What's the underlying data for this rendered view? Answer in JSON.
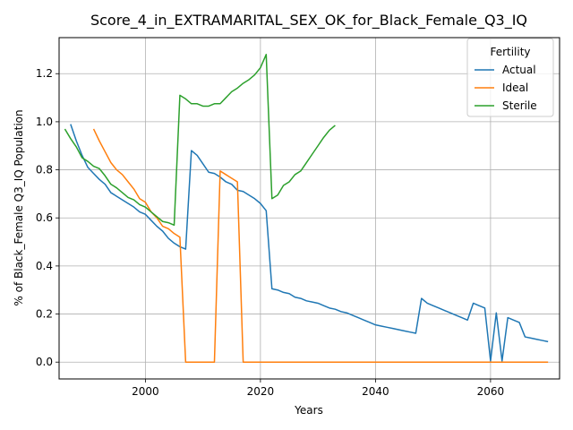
{
  "chart_data": {
    "type": "line",
    "title": "Score_4_in_EXTRAMARITAL_SEX_OK_for_Black_Female_Q3_IQ",
    "xlabel": "Years",
    "ylabel": "% of Black_Female Q3_IQ Population",
    "xlim": [
      1985,
      2072
    ],
    "ylim": [
      -0.07,
      1.35
    ],
    "xticks": [
      2000,
      2020,
      2040,
      2060
    ],
    "yticks": [
      0.0,
      0.2,
      0.4,
      0.6,
      0.8,
      1.0,
      1.2
    ],
    "grid": true,
    "legend": {
      "title": "Fertility",
      "location": "top-right"
    },
    "series": [
      {
        "name": "Actual",
        "color": "#1f77b4",
        "x": [
          1987,
          1988,
          1989,
          1990,
          1991,
          1992,
          1993,
          1994,
          1995,
          1996,
          1997,
          1998,
          1999,
          2000,
          2001,
          2002,
          2003,
          2004,
          2005,
          2006,
          2007,
          2008,
          2009,
          2010,
          2011,
          2012,
          2013,
          2014,
          2015,
          2016,
          2017,
          2018,
          2019,
          2020,
          2021,
          2022,
          2023,
          2024,
          2025,
          2026,
          2027,
          2028,
          2029,
          2030,
          2031,
          2032,
          2033,
          2034,
          2035,
          2036,
          2037,
          2038,
          2039,
          2040,
          2041,
          2042,
          2043,
          2044,
          2045,
          2046,
          2047,
          2048,
          2049,
          2050,
          2051,
          2052,
          2053,
          2054,
          2055,
          2056,
          2057,
          2058,
          2059,
          2060,
          2061,
          2062,
          2063,
          2064,
          2065,
          2066,
          2067,
          2068,
          2069,
          2070
        ],
        "values": [
          0.99,
          0.92,
          0.86,
          0.81,
          0.785,
          0.76,
          0.74,
          0.705,
          0.69,
          0.675,
          0.66,
          0.645,
          0.625,
          0.615,
          0.59,
          0.565,
          0.545,
          0.515,
          0.495,
          0.48,
          0.47,
          0.88,
          0.86,
          0.825,
          0.79,
          0.785,
          0.77,
          0.75,
          0.74,
          0.715,
          0.71,
          0.695,
          0.68,
          0.66,
          0.63,
          0.305,
          0.3,
          0.29,
          0.285,
          0.27,
          0.265,
          0.255,
          0.25,
          0.245,
          0.235,
          0.225,
          0.22,
          0.21,
          0.205,
          0.195,
          0.185,
          0.175,
          0.165,
          0.155,
          0.15,
          0.145,
          0.14,
          0.135,
          0.13,
          0.125,
          0.12,
          0.265,
          0.245,
          0.235,
          0.225,
          0.215,
          0.205,
          0.195,
          0.185,
          0.175,
          0.245,
          0.235,
          0.225,
          0.005,
          0.205,
          0.005,
          0.185,
          0.175,
          0.165,
          0.105,
          0.1,
          0.095,
          0.09,
          0.085
        ]
      },
      {
        "name": "Ideal",
        "color": "#ff7f0e",
        "x": [
          1991,
          1992,
          1993,
          1994,
          1995,
          1996,
          1997,
          1998,
          1999,
          2000,
          2001,
          2002,
          2003,
          2004,
          2005,
          2006,
          2007,
          2008,
          2009,
          2010,
          2011,
          2012,
          2013,
          2014,
          2015,
          2016,
          2017,
          2018,
          2020,
          2030,
          2040,
          2050,
          2060,
          2070
        ],
        "values": [
          0.97,
          0.92,
          0.875,
          0.83,
          0.8,
          0.78,
          0.75,
          0.72,
          0.68,
          0.665,
          0.625,
          0.6,
          0.565,
          0.555,
          0.535,
          0.52,
          0.0,
          0.0,
          0.0,
          0.0,
          0.0,
          0.0,
          0.795,
          0.78,
          0.765,
          0.75,
          0.0,
          0.0,
          0.0,
          0.0,
          0.0,
          0.0,
          0.0,
          0.0
        ]
      },
      {
        "name": "Sterile",
        "color": "#2ca02c",
        "x": [
          1986,
          1987,
          1988,
          1989,
          1990,
          1991,
          1992,
          1993,
          1994,
          1995,
          1996,
          1997,
          1998,
          1999,
          2000,
          2001,
          2002,
          2003,
          2004,
          2005,
          2006,
          2007,
          2008,
          2009,
          2010,
          2011,
          2012,
          2013,
          2014,
          2015,
          2016,
          2017,
          2018,
          2019,
          2020,
          2021,
          2022,
          2023,
          2024,
          2025,
          2026,
          2027,
          2028,
          2029,
          2030,
          2031,
          2032,
          2033
        ],
        "values": [
          0.97,
          0.93,
          0.895,
          0.85,
          0.835,
          0.815,
          0.805,
          0.775,
          0.74,
          0.725,
          0.705,
          0.685,
          0.675,
          0.655,
          0.645,
          0.625,
          0.605,
          0.585,
          0.58,
          0.57,
          1.11,
          1.095,
          1.075,
          1.075,
          1.065,
          1.065,
          1.075,
          1.075,
          1.1,
          1.125,
          1.14,
          1.16,
          1.175,
          1.195,
          1.225,
          1.28,
          0.68,
          0.695,
          0.735,
          0.75,
          0.78,
          0.795,
          0.83,
          0.865,
          0.9,
          0.935,
          0.965,
          0.985
        ]
      }
    ]
  }
}
